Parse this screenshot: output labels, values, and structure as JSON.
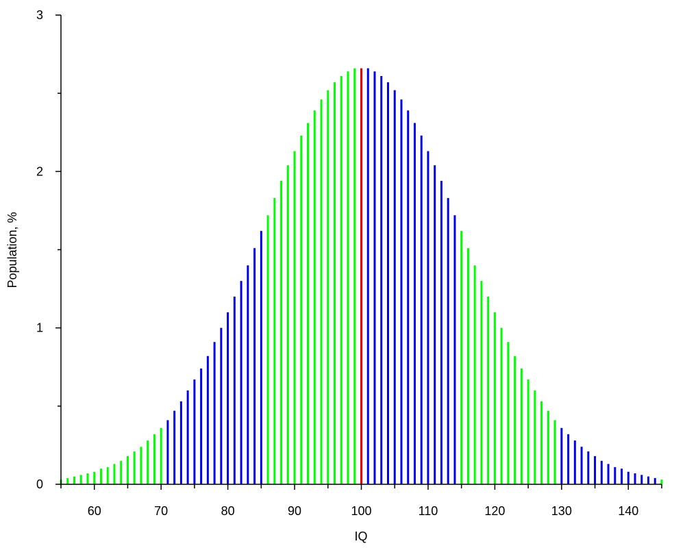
{
  "chart_data": {
    "type": "bar",
    "title": "",
    "xlabel": "IQ",
    "ylabel": "Population, %",
    "xlim": [
      55,
      145
    ],
    "ylim": [
      0,
      3
    ],
    "x_ticks": [
      60,
      70,
      80,
      90,
      100,
      110,
      120,
      130,
      140
    ],
    "y_ticks": [
      0,
      1,
      2,
      3
    ],
    "y_minor_ticks": [
      0.5,
      1.5,
      2.5
    ],
    "grid": false,
    "legend": "none",
    "distribution": {
      "mean": 100,
      "sd": 15
    },
    "colors": {
      "band_a": "#00ff00",
      "band_b": "#0000ee",
      "mean": "#ee0000"
    },
    "color_bands": [
      {
        "from": 55,
        "to": 70,
        "color": "band_a"
      },
      {
        "from": 71,
        "to": 85,
        "color": "band_b"
      },
      {
        "from": 86,
        "to": 99,
        "color": "band_a"
      },
      {
        "from": 100,
        "to": 100,
        "color": "mean"
      },
      {
        "from": 101,
        "to": 114,
        "color": "band_b"
      },
      {
        "from": 115,
        "to": 129,
        "color": "band_a"
      },
      {
        "from": 130,
        "to": 144,
        "color": "band_b"
      },
      {
        "from": 145,
        "to": 145,
        "color": "band_a"
      }
    ],
    "x": [
      55,
      56,
      57,
      58,
      59,
      60,
      61,
      62,
      63,
      64,
      65,
      66,
      67,
      68,
      69,
      70,
      71,
      72,
      73,
      74,
      75,
      76,
      77,
      78,
      79,
      80,
      81,
      82,
      83,
      84,
      85,
      86,
      87,
      88,
      89,
      90,
      91,
      92,
      93,
      94,
      95,
      96,
      97,
      98,
      99,
      100,
      101,
      102,
      103,
      104,
      105,
      106,
      107,
      108,
      109,
      110,
      111,
      112,
      113,
      114,
      115,
      116,
      117,
      118,
      119,
      120,
      121,
      122,
      123,
      124,
      125,
      126,
      127,
      128,
      129,
      130,
      131,
      132,
      133,
      134,
      135,
      136,
      137,
      138,
      139,
      140,
      141,
      142,
      143,
      144,
      145
    ],
    "values": [
      0.03,
      0.04,
      0.05,
      0.06,
      0.07,
      0.08,
      0.1,
      0.11,
      0.13,
      0.15,
      0.18,
      0.21,
      0.24,
      0.28,
      0.32,
      0.36,
      0.41,
      0.47,
      0.53,
      0.6,
      0.67,
      0.74,
      0.82,
      0.91,
      1.0,
      1.1,
      1.2,
      1.3,
      1.4,
      1.51,
      1.62,
      1.72,
      1.83,
      1.94,
      2.04,
      2.13,
      2.23,
      2.31,
      2.39,
      2.46,
      2.52,
      2.57,
      2.61,
      2.64,
      2.66,
      2.66,
      2.66,
      2.64,
      2.61,
      2.57,
      2.52,
      2.46,
      2.39,
      2.31,
      2.23,
      2.13,
      2.04,
      1.94,
      1.83,
      1.72,
      1.62,
      1.51,
      1.4,
      1.3,
      1.2,
      1.1,
      1.0,
      0.91,
      0.82,
      0.74,
      0.67,
      0.6,
      0.53,
      0.47,
      0.41,
      0.36,
      0.32,
      0.28,
      0.24,
      0.21,
      0.18,
      0.15,
      0.13,
      0.11,
      0.1,
      0.08,
      0.07,
      0.06,
      0.05,
      0.04,
      0.03
    ]
  }
}
